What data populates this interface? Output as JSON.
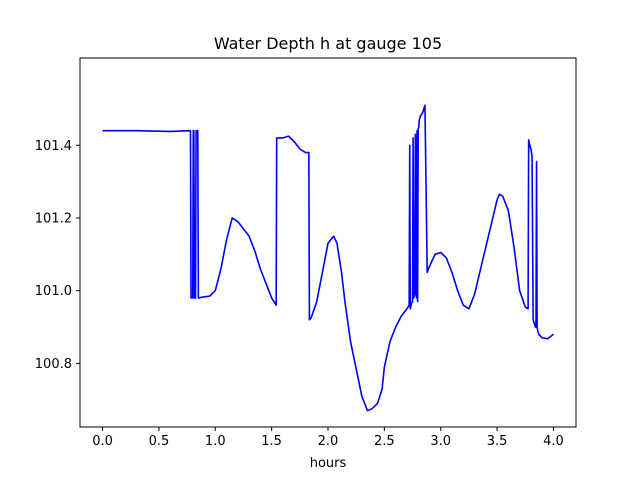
{
  "chart_data": {
    "type": "line",
    "title": "Water Depth h at gauge 105",
    "xlabel": "hours",
    "ylabel": "",
    "xlim": [
      -0.2,
      4.2
    ],
    "ylim": [
      100.625,
      101.64
    ],
    "xticks": [
      0.0,
      0.5,
      1.0,
      1.5,
      2.0,
      2.5,
      3.0,
      3.5,
      4.0
    ],
    "xtick_labels": [
      "0.0",
      "0.5",
      "1.0",
      "1.5",
      "2.0",
      "2.5",
      "3.0",
      "3.5",
      "4.0"
    ],
    "yticks": [
      100.8,
      101.0,
      101.2,
      101.4
    ],
    "ytick_labels": [
      "100.8",
      "101.0",
      "101.2",
      "101.4"
    ],
    "grid": false,
    "series": [
      {
        "color": "#0000ff",
        "x": [
          0.0,
          0.3,
          0.6,
          0.78,
          0.785,
          0.8,
          0.805,
          0.81,
          0.815,
          0.825,
          0.83,
          0.845,
          0.85,
          0.9,
          0.95,
          1.0,
          1.05,
          1.1,
          1.15,
          1.2,
          1.25,
          1.3,
          1.35,
          1.4,
          1.45,
          1.5,
          1.54,
          1.545,
          1.6,
          1.65,
          1.7,
          1.75,
          1.8,
          1.83,
          1.835,
          1.85,
          1.9,
          1.95,
          2.0,
          2.05,
          2.08,
          2.12,
          2.15,
          2.2,
          2.3,
          2.35,
          2.39,
          2.44,
          2.48,
          2.5,
          2.55,
          2.6,
          2.65,
          2.7,
          2.72,
          2.725,
          2.73,
          2.74,
          2.75,
          2.755,
          2.76,
          2.77,
          2.775,
          2.78,
          2.785,
          2.79,
          2.795,
          2.8,
          2.805,
          2.81,
          2.82,
          2.84,
          2.86,
          2.88,
          2.89,
          2.95,
          3.0,
          3.05,
          3.1,
          3.15,
          3.2,
          3.25,
          3.3,
          3.4,
          3.5,
          3.52,
          3.55,
          3.6,
          3.65,
          3.7,
          3.75,
          3.775,
          3.78,
          3.79,
          3.8,
          3.81,
          3.82,
          3.83,
          3.84,
          3.845,
          3.85,
          3.855,
          3.86,
          3.87,
          3.9,
          3.95,
          4.0
        ],
        "y": [
          101.44,
          101.44,
          101.438,
          101.44,
          100.98,
          100.98,
          101.44,
          101.44,
          100.98,
          100.98,
          101.44,
          101.44,
          100.98,
          100.983,
          100.985,
          101.0,
          101.06,
          101.14,
          101.2,
          101.19,
          101.17,
          101.15,
          101.11,
          101.06,
          101.02,
          100.98,
          100.96,
          101.42,
          101.42,
          101.425,
          101.41,
          101.39,
          101.38,
          101.38,
          100.92,
          100.925,
          100.97,
          101.05,
          101.13,
          101.15,
          101.13,
          101.05,
          100.97,
          100.86,
          100.71,
          100.67,
          100.675,
          100.69,
          100.73,
          100.79,
          100.86,
          100.9,
          100.93,
          100.95,
          100.96,
          101.4,
          100.95,
          100.965,
          100.97,
          101.42,
          100.98,
          100.99,
          101.43,
          101.0,
          100.98,
          101.44,
          100.97,
          101.445,
          101.45,
          101.47,
          101.48,
          101.49,
          101.51,
          101.05,
          101.06,
          101.1,
          101.105,
          101.09,
          101.05,
          101.0,
          100.96,
          100.95,
          100.99,
          101.12,
          101.25,
          101.265,
          101.26,
          101.22,
          101.12,
          101.0,
          100.955,
          100.95,
          101.415,
          101.4,
          101.39,
          101.37,
          100.92,
          100.91,
          100.9,
          100.9,
          101.355,
          100.9,
          100.89,
          100.88,
          100.87,
          100.868,
          100.88
        ]
      }
    ]
  }
}
